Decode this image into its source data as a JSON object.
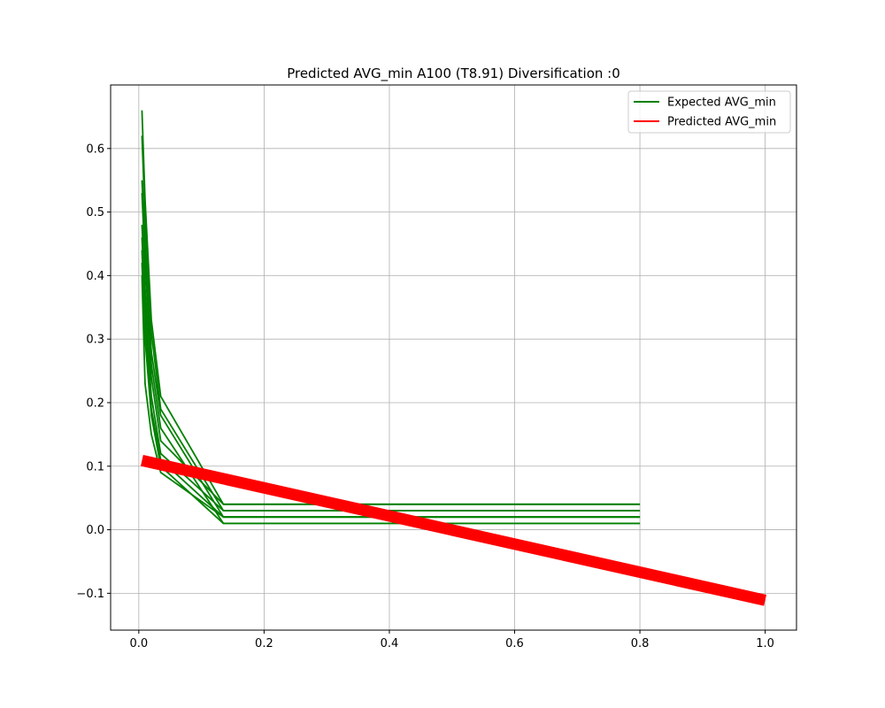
{
  "chart_data": {
    "type": "line",
    "title": "Predicted AVG_min A100 (T8.91) Diversification :0",
    "xlabel": "",
    "ylabel": "",
    "xlim": [
      -0.045,
      1.05
    ],
    "ylim": [
      -0.158,
      0.7
    ],
    "xticks": [
      0.0,
      0.2,
      0.4,
      0.6,
      0.8,
      1.0
    ],
    "xtick_labels": [
      "0.0",
      "0.2",
      "0.4",
      "0.6",
      "0.8",
      "1.0"
    ],
    "yticks": [
      -0.1,
      0.0,
      0.1,
      0.2,
      0.3,
      0.4,
      0.5,
      0.6
    ],
    "ytick_labels": [
      "−0.1",
      "0.0",
      "0.1",
      "0.2",
      "0.3",
      "0.4",
      "0.5",
      "0.6"
    ],
    "grid": true,
    "legend_position": "top-right",
    "legend": [
      {
        "label": "Expected AVG_min",
        "color": "#008000"
      },
      {
        "label": "Predicted AVG_min",
        "color": "#ff0000"
      }
    ],
    "series": [
      {
        "group": "expected",
        "color": "#008000",
        "x": [
          0.005,
          0.01,
          0.02,
          0.035,
          0.135,
          0.8
        ],
        "y": [
          0.66,
          0.52,
          0.33,
          0.21,
          0.04,
          0.04
        ]
      },
      {
        "group": "expected",
        "color": "#008000",
        "x": [
          0.005,
          0.01,
          0.02,
          0.035,
          0.135,
          0.8
        ],
        "y": [
          0.62,
          0.49,
          0.31,
          0.19,
          0.03,
          0.03
        ]
      },
      {
        "group": "expected",
        "color": "#008000",
        "x": [
          0.005,
          0.01,
          0.02,
          0.035,
          0.135,
          0.8
        ],
        "y": [
          0.55,
          0.45,
          0.28,
          0.18,
          0.02,
          0.02
        ]
      },
      {
        "group": "expected",
        "color": "#008000",
        "x": [
          0.005,
          0.01,
          0.02,
          0.035,
          0.135,
          0.8
        ],
        "y": [
          0.53,
          0.42,
          0.26,
          0.16,
          0.01,
          0.01
        ]
      },
      {
        "group": "expected",
        "color": "#008000",
        "x": [
          0.005,
          0.01,
          0.02,
          0.035,
          0.135,
          0.8
        ],
        "y": [
          0.48,
          0.38,
          0.24,
          0.14,
          0.04,
          0.04
        ]
      },
      {
        "group": "expected",
        "color": "#008000",
        "x": [
          0.005,
          0.01,
          0.02,
          0.035,
          0.135,
          0.8
        ],
        "y": [
          0.46,
          0.35,
          0.21,
          0.12,
          0.03,
          0.03
        ]
      },
      {
        "group": "expected",
        "color": "#008000",
        "x": [
          0.005,
          0.01,
          0.02,
          0.035,
          0.135,
          0.8
        ],
        "y": [
          0.44,
          0.32,
          0.19,
          0.11,
          0.02,
          0.02
        ]
      },
      {
        "group": "expected",
        "color": "#008000",
        "x": [
          0.005,
          0.01,
          0.02,
          0.035,
          0.135,
          0.8
        ],
        "y": [
          0.42,
          0.3,
          0.18,
          0.1,
          0.01,
          0.01
        ]
      },
      {
        "group": "expected",
        "color": "#008000",
        "x": [
          0.005,
          0.01,
          0.02,
          0.035,
          0.135,
          0.8
        ],
        "y": [
          0.4,
          0.23,
          0.15,
          0.09,
          0.02,
          0.02
        ]
      },
      {
        "group": "predicted",
        "color": "#ff0000",
        "x": [
          0.005,
          1.0
        ],
        "y": [
          0.109,
          -0.111
        ]
      }
    ]
  }
}
